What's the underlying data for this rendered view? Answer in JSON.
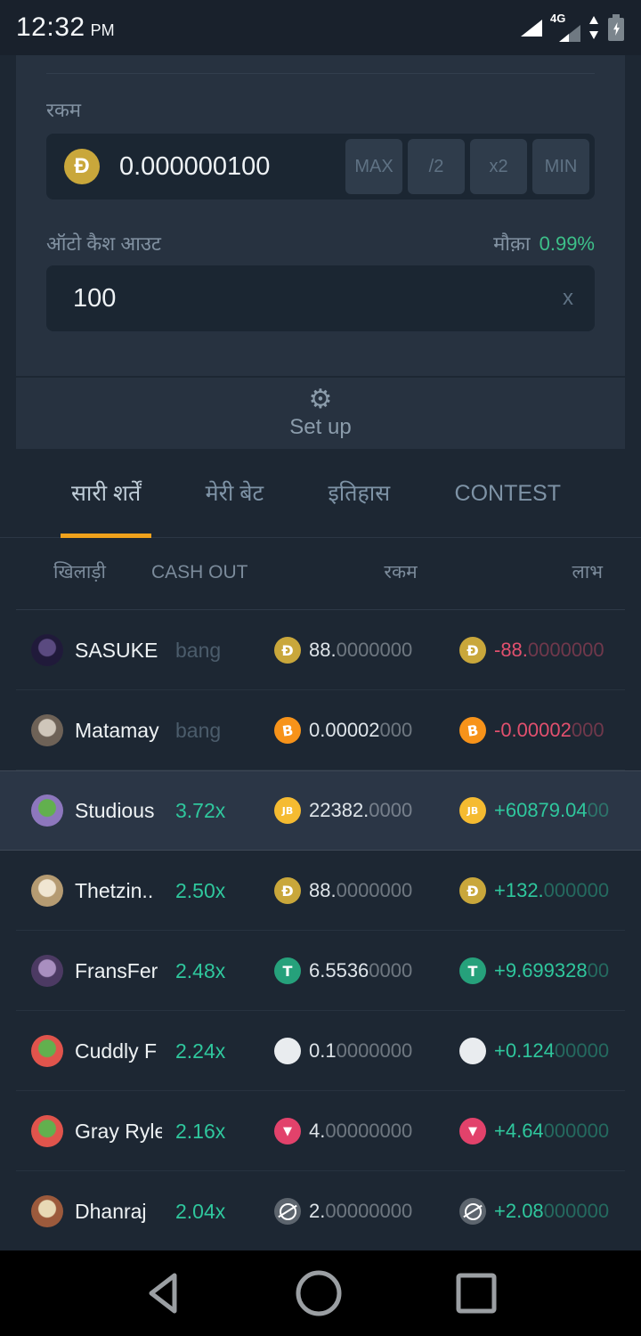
{
  "status_bar": {
    "time": "12:32",
    "meridiem": "PM",
    "network": "4G"
  },
  "bet_panel": {
    "amount_label": "रकम",
    "amount_value": "0.000000100",
    "amount_currency": "doge",
    "quick_buttons": [
      "MAX",
      "/2",
      "x2",
      "MIN"
    ],
    "auto_cashout_label": "ऑटो कैश आउट",
    "chance_label": "मौक़ा",
    "chance_value": "0.99%",
    "auto_cashout_value": "100",
    "auto_cashout_unit": "x",
    "setup_label": "Set up",
    "setup_icon": "gear-icon"
  },
  "tabs": [
    {
      "label": "सारी शर्तें",
      "active": true
    },
    {
      "label": "मेरी बेट",
      "active": false
    },
    {
      "label": "इतिहास",
      "active": false
    },
    {
      "label": "CONTEST",
      "active": false
    }
  ],
  "table": {
    "headers": [
      "खिलाड़ी",
      "CASH OUT",
      "रकम",
      "लाभ"
    ],
    "rows": [
      {
        "name": "SASUKE",
        "cashout": "bang",
        "result": "loss",
        "coin": "doge",
        "amount_main": "88.",
        "amount_dim": "0000000",
        "profit_main": "-88.",
        "profit_dim": "0000000",
        "highlight": false,
        "avatar": {
          "inner": "#5a4a80",
          "outer": "#201a3a"
        }
      },
      {
        "name": "Matamay",
        "cashout": "bang",
        "result": "loss",
        "coin": "btc",
        "amount_main": "0.00002",
        "amount_dim": "000",
        "profit_main": "-0.00002",
        "profit_dim": "000",
        "highlight": false,
        "avatar": {
          "inner": "#cfc6ba",
          "outer": "#6e6257"
        }
      },
      {
        "name": "Studious",
        "cashout": "3.72x",
        "result": "win",
        "coin": "jb",
        "amount_main": "22382.",
        "amount_dim": "0000",
        "profit_main": "+60879.04",
        "profit_dim": "00",
        "highlight": true,
        "avatar": {
          "inner": "#62b04e",
          "outer": "#8d77bd"
        }
      },
      {
        "name": "Thetzin..",
        "cashout": "2.50x",
        "result": "win",
        "coin": "doge",
        "amount_main": "88.",
        "amount_dim": "0000000",
        "profit_main": "+132.",
        "profit_dim": "000000",
        "highlight": false,
        "avatar": {
          "inner": "#f0e6d2",
          "outer": "#b59b72"
        }
      },
      {
        "name": "FransFer",
        "cashout": "2.48x",
        "result": "win",
        "coin": "usdt",
        "amount_main": "6.5536",
        "amount_dim": "0000",
        "profit_main": "+9.699328",
        "profit_dim": "00",
        "highlight": false,
        "avatar": {
          "inner": "#a98fc0",
          "outer": "#4c3a63"
        }
      },
      {
        "name": "Cuddly F",
        "cashout": "2.24x",
        "result": "win",
        "coin": "white",
        "amount_main": "0.1",
        "amount_dim": "0000000",
        "profit_main": "+0.124",
        "profit_dim": "00000",
        "highlight": false,
        "avatar": {
          "inner": "#62b04e",
          "outer": "#e0544c"
        }
      },
      {
        "name": "Gray Ryle",
        "cashout": "2.16x",
        "result": "win",
        "coin": "trx",
        "amount_main": "4.",
        "amount_dim": "00000000",
        "profit_main": "+4.64",
        "profit_dim": "000000",
        "highlight": false,
        "avatar": {
          "inner": "#62b04e",
          "outer": "#e0544c"
        }
      },
      {
        "name": "Dhanraj",
        "cashout": "2.04x",
        "result": "win",
        "coin": "xlm",
        "amount_main": "2.",
        "amount_dim": "00000000",
        "profit_main": "+2.08",
        "profit_dim": "000000",
        "highlight": false,
        "avatar": {
          "inner": "#e8d9b5",
          "outer": "#9c5a3c"
        }
      }
    ]
  },
  "coins": {
    "doge": {
      "color": "#c9a73b",
      "glyph": "Đ"
    },
    "btc": {
      "color": "#f7931a",
      "glyph": "B"
    },
    "jb": {
      "color": "#f5bb31",
      "glyph": "JB"
    },
    "usdt": {
      "color": "#26a17b",
      "glyph": "T"
    },
    "white": {
      "color": "#e9ecef",
      "glyph": ""
    },
    "trx": {
      "color": "#e2426b",
      "glyph": "▼"
    },
    "xlm": {
      "color": "#5d656e",
      "glyph": ""
    }
  },
  "colors": {
    "accent": "#f0a21c",
    "win": "#2fc79d",
    "loss": "#e2506e",
    "chance": "#3dc089"
  },
  "nav_bar": {
    "icons": [
      "back",
      "home",
      "recents"
    ]
  }
}
